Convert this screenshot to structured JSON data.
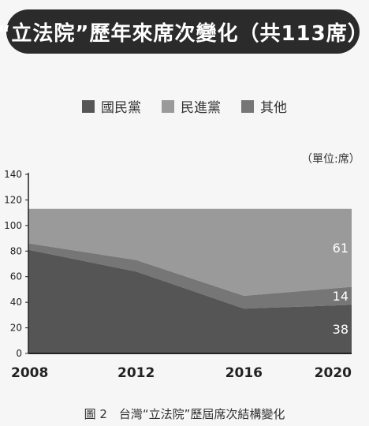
{
  "banner": {
    "title": "“立法院”歷年來席次變化（共113席）"
  },
  "unit_label": "（單位:席）",
  "caption": "圖 2　台灣“立法院”歷屆席次結構變化",
  "colors": {
    "kmt": "#555555",
    "dpp": "#9a9a9a",
    "other": "#767676",
    "banner_bg": "#2b2b2b"
  },
  "chart_data": {
    "type": "area",
    "stacked": true,
    "categories": [
      "2008",
      "2012",
      "2016",
      "2020"
    ],
    "series": [
      {
        "name": "國民黨",
        "values": [
          81,
          64,
          35,
          38
        ],
        "color": "#555555"
      },
      {
        "name": "民進黨",
        "values": [
          27,
          40,
          68,
          61
        ],
        "color": "#9a9a9a"
      },
      {
        "name": "其他",
        "values": [
          5,
          9,
          10,
          14
        ],
        "color": "#767676"
      }
    ],
    "data_labels": [
      {
        "series": "國民黨",
        "category": "2020",
        "text": "38"
      },
      {
        "series": "其他",
        "category": "2020",
        "text": "14"
      },
      {
        "series": "民進黨",
        "category": "2020",
        "text": "61"
      }
    ],
    "ylim": [
      0,
      140
    ],
    "yticks": [
      0,
      20,
      40,
      60,
      80,
      100,
      120,
      140
    ],
    "grid": false,
    "legend_position": "top"
  }
}
